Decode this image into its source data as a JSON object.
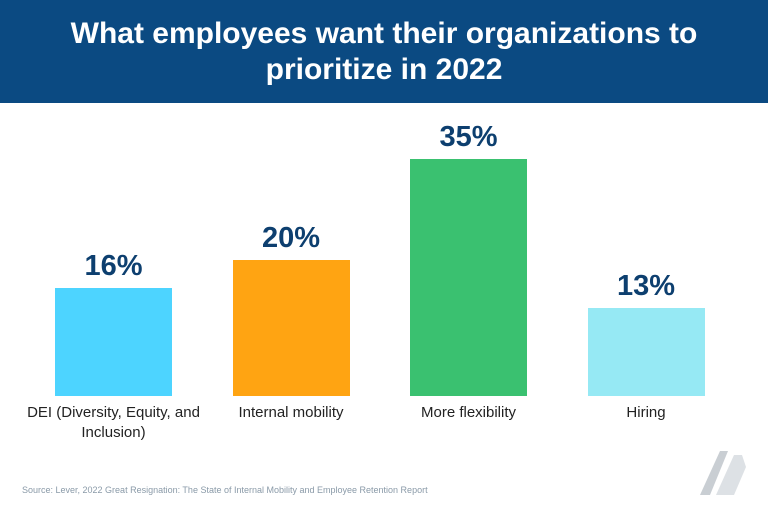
{
  "chart_data": {
    "type": "bar",
    "title": "What employees want their organizations to prioritize in 2022",
    "categories": [
      "DEI (Diversity, Equity, and Inclusion)",
      "Internal mobility",
      "More flexibility",
      "Hiring"
    ],
    "values": [
      16,
      20,
      35,
      13
    ],
    "value_labels": [
      "16%",
      "20%",
      "35%",
      "13%"
    ],
    "colors": [
      "#4dd4ff",
      "#ffa412",
      "#3ac170",
      "#96e9f4"
    ],
    "source": "Source: Lever, 2022 Great Resignation: The State of Internal Mobility and Employee Retention Report"
  }
}
